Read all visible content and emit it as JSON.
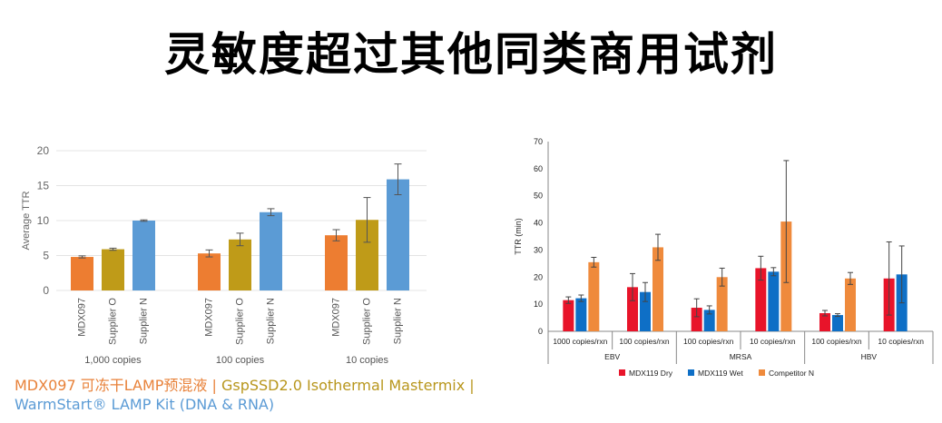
{
  "title": "灵敏度超过其他同类商用试剂",
  "caption": {
    "part1": "MDX097 可冻干LAMP预混液",
    "sep1": " | ",
    "part2": "GspSSD2.0 Isothermal Mastermix",
    "sep2": " |",
    "part3": "WarmStart® LAMP Kit (DNA & RNA)"
  },
  "colors": {
    "mdx097": "#ED7D31",
    "supplier_o": "#BF9B18",
    "supplier_n": "#5B9BD5",
    "dry": "#E8142A",
    "wet": "#0E6FC6",
    "competitor": "#EF8A3C"
  },
  "chart_data": [
    {
      "type": "bar",
      "title": "",
      "ylabel": "Average TTR",
      "ylim": [
        0,
        20
      ],
      "yticks": [
        0,
        5,
        10,
        15,
        20
      ],
      "groups": [
        "1,000 copies",
        "100 copies",
        "10 copies"
      ],
      "categories": [
        "MDX097",
        "Supplier O",
        "Supplier N"
      ],
      "series": [
        {
          "name": "MDX097",
          "values": [
            4.8,
            5.3,
            7.9
          ],
          "errors": [
            0.15,
            0.5,
            0.8
          ]
        },
        {
          "name": "Supplier O",
          "values": [
            5.9,
            7.3,
            10.1
          ],
          "errors": [
            0.15,
            0.9,
            3.2
          ]
        },
        {
          "name": "Supplier N",
          "values": [
            10.0,
            11.2,
            15.9
          ],
          "errors": [
            0.1,
            0.5,
            2.2
          ]
        }
      ]
    },
    {
      "type": "bar",
      "title": "",
      "ylabel": "TTR (min)",
      "ylim": [
        0,
        70
      ],
      "yticks": [
        0,
        10,
        20,
        30,
        40,
        50,
        60,
        70
      ],
      "categories": [
        "1000 copies/rxn",
        "100 copies/rxn",
        "100 copies/rxn",
        "10 copies/rxn",
        "100 copies/rxn",
        "10 copies/rxn"
      ],
      "groups": [
        "EBV",
        "MRSA",
        "HBV"
      ],
      "legend": [
        "MDX119 Dry",
        "MDX119 Wet",
        "Competitor N"
      ],
      "legend_position": "bottom",
      "series": [
        {
          "name": "MDX119 Dry",
          "values": [
            11.5,
            16.3,
            8.7,
            23.3,
            6.7,
            19.5
          ],
          "errors": [
            1.2,
            5.0,
            3.3,
            4.4,
            1.0,
            13.5
          ]
        },
        {
          "name": "MDX119 Wet",
          "values": [
            12.2,
            14.5,
            7.9,
            22.0,
            6.0,
            21.0
          ],
          "errors": [
            1.2,
            3.5,
            1.5,
            1.5,
            0.5,
            10.5
          ]
        },
        {
          "name": "Competitor N",
          "values": [
            25.5,
            31.0,
            20.0,
            40.5,
            19.5,
            null
          ],
          "errors": [
            1.8,
            4.8,
            3.3,
            22.5,
            2.2,
            null
          ]
        }
      ]
    }
  ]
}
